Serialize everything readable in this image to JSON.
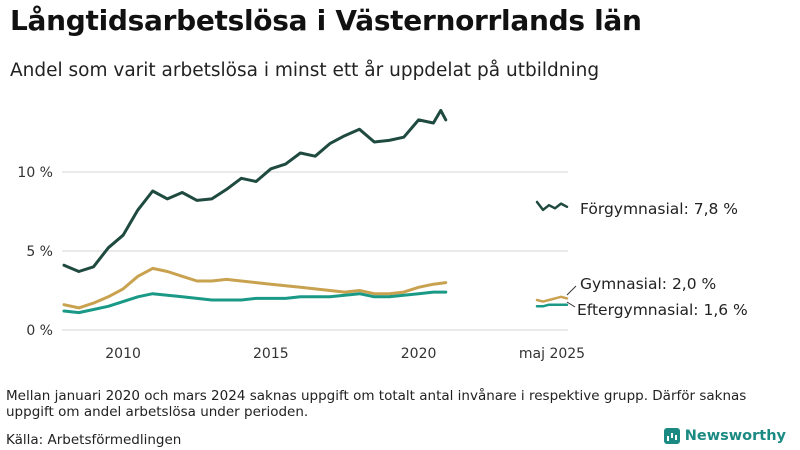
{
  "title": "Långtidsarbetslösa i Västernorrlands län",
  "subtitle": "Andel som varit arbetslösa i minst ett år uppdelat på utbildning",
  "note": "Mellan januari 2020 och mars 2024 saknas uppgift om totalt antal invånare i respektive grupp. Därför saknas uppgift om andel arbetslösa under perioden.",
  "source": "Källa: Arbetsförmedlingen",
  "brand": {
    "name": "Newsworthy",
    "icon": "bar-chart-icon"
  },
  "chart_data": {
    "type": "line",
    "title": "Långtidsarbetslösa i Västernorrlands län",
    "xlabel": "",
    "ylabel": "",
    "ylim": [
      0,
      15
    ],
    "yticks": [
      0,
      5,
      10
    ],
    "ytick_labels": [
      "0 %",
      "5 %",
      "10 %"
    ],
    "xtick_labels": [
      "2010",
      "2015",
      "2020",
      "maj 2025"
    ],
    "grid": true,
    "legend": "end-labels",
    "series": [
      {
        "name": "Förgymnasial",
        "end_label": "Förgymnasial: 7,8 %",
        "color": "#1f4a3f",
        "x": [
          2008.0,
          2008.5,
          2009.0,
          2009.5,
          2010.0,
          2010.5,
          2011.0,
          2011.5,
          2012.0,
          2012.5,
          2013.0,
          2013.5,
          2014.0,
          2014.5,
          2015.0,
          2015.5,
          2016.0,
          2016.5,
          2017.0,
          2017.5,
          2018.0,
          2018.5,
          2019.0,
          2019.5,
          2020.0,
          2020.5,
          2020.75,
          2020.92
        ],
        "y": [
          4.1,
          3.7,
          4.0,
          5.2,
          6.0,
          7.6,
          8.8,
          8.3,
          8.7,
          8.2,
          8.3,
          8.9,
          9.6,
          9.4,
          10.2,
          10.5,
          11.2,
          11.0,
          11.8,
          12.3,
          12.7,
          11.9,
          12.0,
          12.2,
          13.3,
          13.1,
          13.9,
          13.3
        ],
        "recent": {
          "x": [
            "2024-04",
            "2024-07",
            "2024-10",
            "2025-01",
            "2025-03",
            "2025-05"
          ],
          "y": [
            8.1,
            7.6,
            7.9,
            7.7,
            8.0,
            7.8
          ]
        }
      },
      {
        "name": "Gymnasial",
        "end_label": "Gymnasial: 2,0 %",
        "color": "#c9a250",
        "x": [
          2008.0,
          2008.5,
          2009.0,
          2009.5,
          2010.0,
          2010.5,
          2011.0,
          2011.5,
          2012.0,
          2012.5,
          2013.0,
          2013.5,
          2014.0,
          2014.5,
          2015.0,
          2015.5,
          2016.0,
          2016.5,
          2017.0,
          2017.5,
          2018.0,
          2018.5,
          2019.0,
          2019.5,
          2020.0,
          2020.5,
          2020.92
        ],
        "y": [
          1.6,
          1.4,
          1.7,
          2.1,
          2.6,
          3.4,
          3.9,
          3.7,
          3.4,
          3.1,
          3.1,
          3.2,
          3.1,
          3.0,
          2.9,
          2.8,
          2.7,
          2.6,
          2.5,
          2.4,
          2.5,
          2.3,
          2.3,
          2.4,
          2.7,
          2.9,
          3.0
        ],
        "recent": {
          "x": [
            "2024-04",
            "2024-07",
            "2024-10",
            "2025-01",
            "2025-03",
            "2025-05"
          ],
          "y": [
            1.9,
            1.8,
            1.9,
            2.0,
            2.1,
            2.0
          ]
        }
      },
      {
        "name": "Eftergymnasial",
        "end_label": "Eftergymnasial: 1,6 %",
        "color": "#1a9a86",
        "x": [
          2008.0,
          2008.5,
          2009.0,
          2009.5,
          2010.0,
          2010.5,
          2011.0,
          2011.5,
          2012.0,
          2012.5,
          2013.0,
          2013.5,
          2014.0,
          2014.5,
          2015.0,
          2015.5,
          2016.0,
          2016.5,
          2017.0,
          2017.5,
          2018.0,
          2018.5,
          2019.0,
          2019.5,
          2020.0,
          2020.5,
          2020.92
        ],
        "y": [
          1.2,
          1.1,
          1.3,
          1.5,
          1.8,
          2.1,
          2.3,
          2.2,
          2.1,
          2.0,
          1.9,
          1.9,
          1.9,
          2.0,
          2.0,
          2.0,
          2.1,
          2.1,
          2.1,
          2.2,
          2.3,
          2.1,
          2.1,
          2.2,
          2.3,
          2.4,
          2.4
        ],
        "recent": {
          "x": [
            "2024-04",
            "2024-07",
            "2024-10",
            "2025-01",
            "2025-03",
            "2025-05"
          ],
          "y": [
            1.5,
            1.5,
            1.6,
            1.6,
            1.6,
            1.6
          ]
        }
      }
    ]
  }
}
